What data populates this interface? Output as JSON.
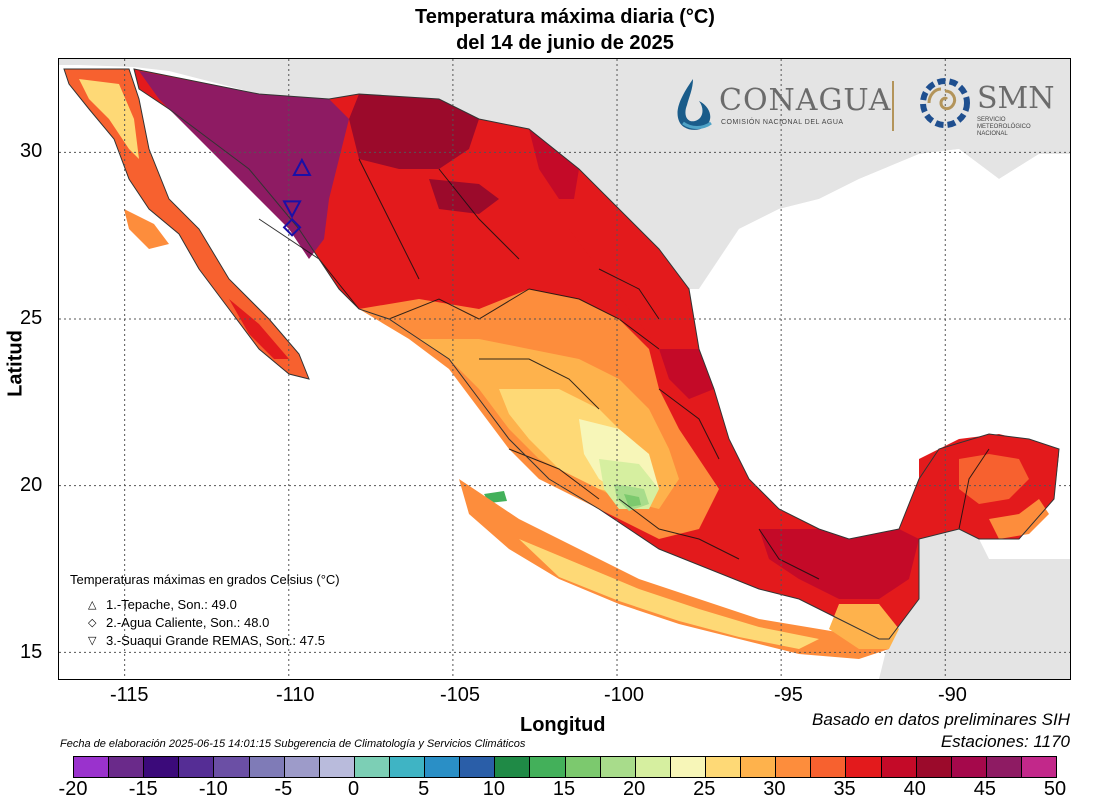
{
  "title_line1": "Temperatura máxima diaria (°C)",
  "title_line2": "del 14 de junio de 2025",
  "axes": {
    "xlabel": "Longitud",
    "ylabel": "Latitud",
    "x_ticks": [
      "-115",
      "-110",
      "-105",
      "-100",
      "-95",
      "-90"
    ],
    "y_ticks": [
      "30",
      "25",
      "20",
      "15"
    ]
  },
  "logos": {
    "conagua_name": "CONAGUA",
    "conagua_sub": "COMISIÓN NACIONAL DEL AGUA",
    "smn_name": "SMN",
    "smn_sub1": "SERVICIO",
    "smn_sub2": "METEOROLÓGICO",
    "smn_sub3": "NACIONAL"
  },
  "legend": {
    "title": "Temperaturas máximas en grados Celsius (°C)",
    "entries": [
      {
        "symbol": "△",
        "label": "1.-Tepache, Son.: 49.0"
      },
      {
        "symbol": "◇",
        "label": "2.-Agua Caliente, Son.: 48.0"
      },
      {
        "symbol": "▽",
        "label": "3.-Suaqui Grande REMAS, Son.: 47.5"
      }
    ]
  },
  "source_note": "Basado en datos preliminares SIH",
  "stations_note": "Estaciones:  1170",
  "fecha": "Fecha de elaboración 2025-06-15 14:01:15 Subgerencia de Climatología y Servicios Climáticos",
  "colorbar": {
    "labels": [
      "-20",
      "-15",
      "-10",
      "-5",
      "0",
      "5",
      "10",
      "15",
      "20",
      "25",
      "30",
      "35",
      "40",
      "45",
      "50"
    ],
    "colors": [
      "#9a32cd",
      "#6a2a8a",
      "#3b0a7a",
      "#552d95",
      "#6b4fa5",
      "#7f7bb7",
      "#9d9bc9",
      "#b9bbdc",
      "#7ccfb5",
      "#3fb4c4",
      "#2a8fc6",
      "#2a5ea8",
      "#1f8a46",
      "#43b05a",
      "#7cc96e",
      "#a8dc8b",
      "#d6efa0",
      "#f7f6b8",
      "#fed976",
      "#feb24c",
      "#fd8d3c",
      "#f7612f",
      "#e31a1c",
      "#c40a28",
      "#9b0a2b",
      "#a5084b",
      "#8e1b63",
      "#c2288a"
    ]
  },
  "stations_markers": [
    {
      "id": "1",
      "symbol": "triangle-up",
      "lon": -109.6,
      "lat": 29.5
    },
    {
      "id": "2",
      "symbol": "diamond",
      "lon": -109.9,
      "lat": 27.75
    },
    {
      "id": "3",
      "symbol": "triangle-down",
      "lon": -109.9,
      "lat": 28.35
    }
  ]
}
